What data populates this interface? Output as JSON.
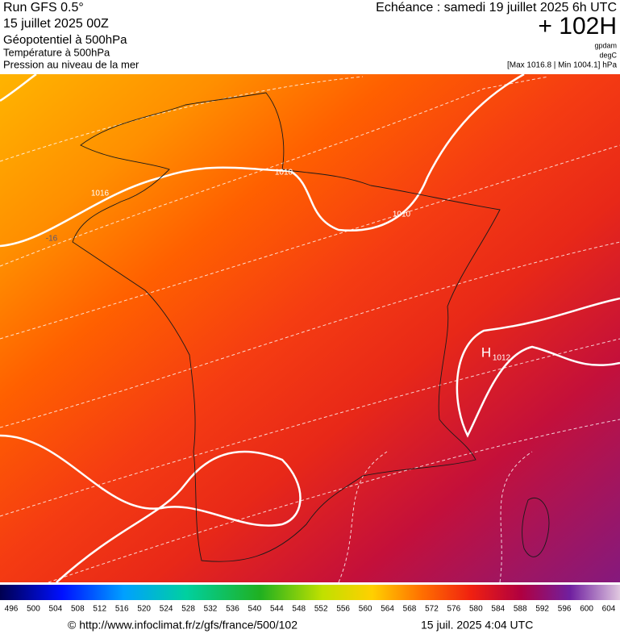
{
  "header": {
    "run": "Run GFS 0.5°",
    "date": "15 juillet 2025 00Z",
    "field1": "Géopotentiel à 500hPa",
    "field2": "Température à 500hPa",
    "field3": "Pression au niveau de la mer",
    "valid": "Echéance : samedi 19 juillet 2025 6h UTC",
    "lead": "+ 102H",
    "unit1": "gpdam",
    "unit2": "degC",
    "unit3": "[Max 1016.8 | Min 1004.1] hPa"
  },
  "map": {
    "labels": [
      "1016",
      "-16",
      "1010",
      "1010",
      "H",
      "1012"
    ]
  },
  "colorbar": {
    "labels": [
      496,
      500,
      504,
      508,
      512,
      516,
      520,
      524,
      528,
      532,
      536,
      540,
      544,
      548,
      552,
      556,
      560,
      564,
      568,
      572,
      576,
      580,
      584,
      588,
      592,
      596,
      600,
      604
    ]
  },
  "footer": {
    "url": "© http://www.infoclimat.fr/z/gfs/france/500/102",
    "time": "15 juil. 2025  4:04 UTC"
  }
}
